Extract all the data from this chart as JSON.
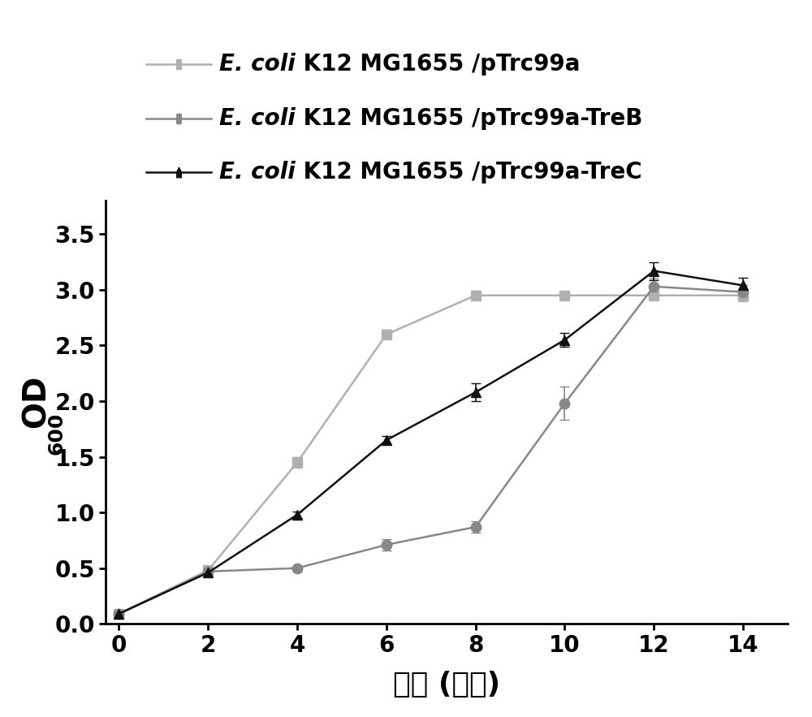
{
  "x": [
    0,
    2,
    4,
    6,
    8,
    10,
    12,
    14
  ],
  "series1_y": [
    0.09,
    0.48,
    1.45,
    2.6,
    2.95,
    2.95,
    2.95,
    2.95
  ],
  "series1_err": [
    0.01,
    0.02,
    0.05,
    0.04,
    0.04,
    0.03,
    0.04,
    0.05
  ],
  "series1_color": "#b0b0b0",
  "series1_label_italic": "E. coli",
  "series1_label_rest": " K12 MG1655 /pTrc99a",
  "series1_marker": "s",
  "series2_y": [
    0.09,
    0.47,
    0.5,
    0.71,
    0.87,
    1.98,
    3.03,
    2.98
  ],
  "series2_err": [
    0.01,
    0.02,
    0.02,
    0.05,
    0.05,
    0.15,
    0.07,
    0.06
  ],
  "series2_color": "#888888",
  "series2_label_italic": "E. coli",
  "series2_label_rest": " K12 MG1655 /pTrc99a-TreB",
  "series2_marker": "o",
  "series3_y": [
    0.09,
    0.46,
    0.98,
    1.65,
    2.08,
    2.55,
    3.17,
    3.04
  ],
  "series3_err": [
    0.01,
    0.02,
    0.03,
    0.04,
    0.08,
    0.06,
    0.08,
    0.07
  ],
  "series3_color": "#111111",
  "series3_label_italic": "E. coli",
  "series3_label_rest": " K12 MG1655 /pTrc99a-TreC",
  "series3_marker": "^",
  "xlabel": "时间 (小时)",
  "xlim": [
    -0.3,
    15
  ],
  "ylim": [
    0.0,
    3.8
  ],
  "xticks": [
    0,
    2,
    4,
    6,
    8,
    10,
    12,
    14
  ],
  "yticks": [
    0.0,
    0.5,
    1.0,
    1.5,
    2.0,
    2.5,
    3.0,
    3.5
  ],
  "markersize": 9,
  "linewidth": 1.8,
  "capsize": 4,
  "elinewidth": 1.2,
  "figsize": [
    10.0,
    8.83
  ],
  "dpi": 100
}
